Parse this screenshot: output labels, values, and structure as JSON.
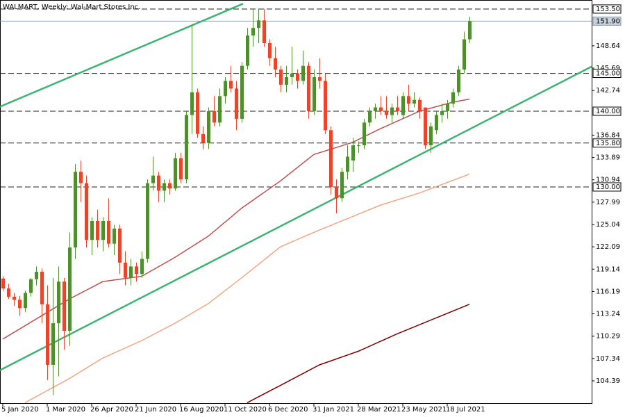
{
  "chart_data": {
    "type": "candlestick",
    "title": "WALMART, Weekly:  Wal-Mart Stores Inc.",
    "categories": [
      "5 Jan 2020",
      null,
      null,
      null,
      null,
      null,
      null,
      null,
      "1 Mar 2020",
      null,
      null,
      null,
      null,
      null,
      null,
      null,
      "26 Apr 2020",
      null,
      null,
      null,
      null,
      null,
      null,
      null,
      "21 Jun 2020",
      null,
      null,
      null,
      null,
      null,
      null,
      null,
      "16 Aug 2020",
      null,
      null,
      null,
      null,
      null,
      null,
      null,
      "11 Oct 2020",
      null,
      null,
      null,
      null,
      null,
      null,
      null,
      "6 Dec 2020",
      null,
      null,
      null,
      null,
      null,
      null,
      null,
      "31 Jan 2021",
      null,
      null,
      null,
      null,
      null,
      null,
      null,
      "28 Mar 2021",
      null,
      null,
      null,
      null,
      null,
      null,
      null,
      "23 May 2021",
      null,
      null,
      null,
      null,
      null,
      null,
      null,
      "18 Jul 2021",
      null,
      null,
      null,
      null
    ],
    "open": [
      117.9,
      116.6,
      115.5,
      115.1,
      114.0,
      116.0,
      117.8,
      118.8,
      114.5,
      106.5,
      112.0,
      117.5,
      111.0,
      122.0,
      132.0,
      130.5,
      123.0,
      125.5,
      123.0,
      125.5,
      122.5,
      124.5,
      120.0,
      118.0,
      119.5,
      118.5,
      120.5,
      130.5,
      131.5,
      129.5,
      130.5,
      129.8,
      133.8,
      131.0,
      139.5,
      142.5,
      137.0,
      135.8,
      140.0,
      138.5,
      142.0,
      144.0,
      143.0,
      139.0,
      146.0,
      150.0,
      151.0,
      152.0,
      149.0,
      147.0,
      145.5,
      143.5,
      144.5,
      145.0,
      144.0,
      146.0,
      140.0,
      144.5,
      144.0,
      137.5,
      130.0,
      128.5,
      132.0,
      133.5,
      135.5,
      135.5,
      138.5,
      140.0,
      140.5,
      140.0,
      139.5,
      140.5,
      139.5,
      142.0,
      141.0,
      141.5,
      140.5,
      135.5,
      137.5,
      139.5,
      140.0,
      141.0,
      142.5,
      145.5,
      149.5
    ],
    "high": [
      118.2,
      117.2,
      116.0,
      115.6,
      116.3,
      118.0,
      119.5,
      119.2,
      117.0,
      118.0,
      119.5,
      118.0,
      124.0,
      133.0,
      133.5,
      131.5,
      126.0,
      127.0,
      126.0,
      128.5,
      125.0,
      125.0,
      121.5,
      120.5,
      120.0,
      121.5,
      131.0,
      134.0,
      132.0,
      131.0,
      131.0,
      134.5,
      134.5,
      140.0,
      151.5,
      143.0,
      138.0,
      140.5,
      142.0,
      143.0,
      144.5,
      146.0,
      144.0,
      146.5,
      151.0,
      153.5,
      153.5,
      153.5,
      149.5,
      148.5,
      146.0,
      146.0,
      148.5,
      145.5,
      148.0,
      146.5,
      145.5,
      147.0,
      145.0,
      138.0,
      131.0,
      132.5,
      135.5,
      136.5,
      136.0,
      139.0,
      140.5,
      141.0,
      142.0,
      142.0,
      141.0,
      142.0,
      142.5,
      143.5,
      142.5,
      141.8,
      140.5,
      138.5,
      140.0,
      141.0,
      141.5,
      143.0,
      146.0,
      150.5,
      152.5
    ],
    "low": [
      116.3,
      115.2,
      114.3,
      113.0,
      113.5,
      115.5,
      117.0,
      112.0,
      104.5,
      102.5,
      105.0,
      108.5,
      109.0,
      120.5,
      128.0,
      122.0,
      121.0,
      122.0,
      121.5,
      122.0,
      121.0,
      118.5,
      117.0,
      117.0,
      117.5,
      118.0,
      120.0,
      129.5,
      128.0,
      128.0,
      129.0,
      129.5,
      130.5,
      130.5,
      137.0,
      136.5,
      135.0,
      135.0,
      138.0,
      138.0,
      141.0,
      142.5,
      137.5,
      138.5,
      145.5,
      148.5,
      149.0,
      148.5,
      146.0,
      144.5,
      142.5,
      142.5,
      143.5,
      143.0,
      143.5,
      139.0,
      139.5,
      143.0,
      137.0,
      129.0,
      126.5,
      128.0,
      131.0,
      132.0,
      134.5,
      135.0,
      138.0,
      139.0,
      139.5,
      139.0,
      138.5,
      139.5,
      139.0,
      140.0,
      140.5,
      139.0,
      135.0,
      134.5,
      137.0,
      138.5,
      139.0,
      140.5,
      142.0,
      145.0,
      149.0
    ],
    "close": [
      116.6,
      115.5,
      115.1,
      114.0,
      116.0,
      117.8,
      118.8,
      114.5,
      106.5,
      112.0,
      117.5,
      111.0,
      122.0,
      132.0,
      130.5,
      123.0,
      125.5,
      123.0,
      125.5,
      122.5,
      124.5,
      120.0,
      118.0,
      119.5,
      118.5,
      120.5,
      130.5,
      131.5,
      129.5,
      130.5,
      129.8,
      133.8,
      131.0,
      139.5,
      142.5,
      137.0,
      135.8,
      140.0,
      138.5,
      142.0,
      144.0,
      143.0,
      139.0,
      146.0,
      150.0,
      151.0,
      152.0,
      149.0,
      147.0,
      145.5,
      143.5,
      144.5,
      145.0,
      144.0,
      146.0,
      140.0,
      144.5,
      144.0,
      137.5,
      130.0,
      128.5,
      132.0,
      134.0,
      135.5,
      135.5,
      138.5,
      140.0,
      140.5,
      140.0,
      139.5,
      140.5,
      140.0,
      142.0,
      141.0,
      141.5,
      140.0,
      135.5,
      138.0,
      139.5,
      140.0,
      141.0,
      142.5,
      145.5,
      149.5,
      151.9
    ],
    "up_color": "#4f8f2f",
    "down_color": "#e8452c",
    "ylim": [
      101.45,
      154.69
    ],
    "yticks": [
      104.39,
      107.34,
      110.29,
      113.24,
      116.19,
      119.14,
      122.09,
      125.04,
      127.99,
      130.94,
      133.89,
      136.84,
      142.74,
      145.69,
      148.64
    ],
    "levels": [
      {
        "value": 153.5,
        "label": "153.50"
      },
      {
        "value": 145,
        "label": "145.00"
      },
      {
        "value": 140,
        "label": "140.00"
      },
      {
        "value": 135.8,
        "label": "135.80"
      },
      {
        "value": 130,
        "label": "130.00"
      }
    ],
    "current_price": {
      "value": 151.9,
      "label": "151.90"
    },
    "moving_averages": [
      {
        "color": "#c0504d",
        "x": [
          0,
          12,
          18,
          25,
          31,
          37,
          43,
          50,
          56,
          60,
          63,
          68,
          75,
          81,
          84
        ],
        "values": [
          109.9,
          115.2,
          117.5,
          118.2,
          120.7,
          123.5,
          127.2,
          130.8,
          134.3,
          135.2,
          135.9,
          137.7,
          140.0,
          141.2,
          141.6
        ]
      },
      {
        "color": "#f4a582",
        "x": [
          4,
          12,
          18,
          25,
          31,
          37,
          43,
          50,
          56,
          62,
          68,
          75,
          84
        ],
        "values": [
          101.5,
          104.7,
          107.4,
          109.7,
          112.0,
          114.6,
          118.0,
          122.1,
          124.0,
          125.8,
          127.6,
          129.2,
          131.7
        ]
      },
      {
        "color": "#7b0000",
        "x": [
          44,
          50,
          57,
          64,
          71,
          77,
          84
        ],
        "values": [
          101.5,
          103.8,
          106.5,
          108.3,
          110.6,
          112.4,
          114.5
        ]
      }
    ],
    "trendlines": [
      {
        "color": "#3cb371",
        "x": [
          -0.5,
          43.25
        ],
        "values": [
          140.6,
          154.2
        ]
      },
      {
        "color": "#3cb371",
        "x": [
          -0.5,
          106
        ],
        "values": [
          105.8,
          145.9
        ]
      }
    ]
  }
}
